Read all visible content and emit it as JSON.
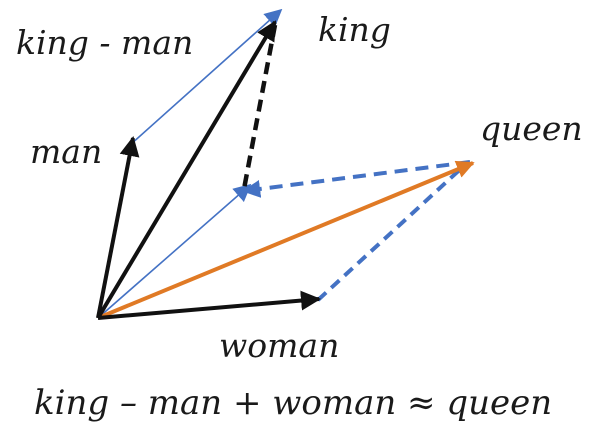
{
  "labels": {
    "king": "king",
    "king_minus_man": "king - man",
    "man": "man",
    "queen": "queen",
    "woman": "woman"
  },
  "equation": "king – man + woman ≈ queen",
  "colors": {
    "black_vectors": "#111111",
    "blue_vectors": "#4472c4",
    "orange_vector": "#e07a25",
    "text": "#1a1a1a"
  }
}
